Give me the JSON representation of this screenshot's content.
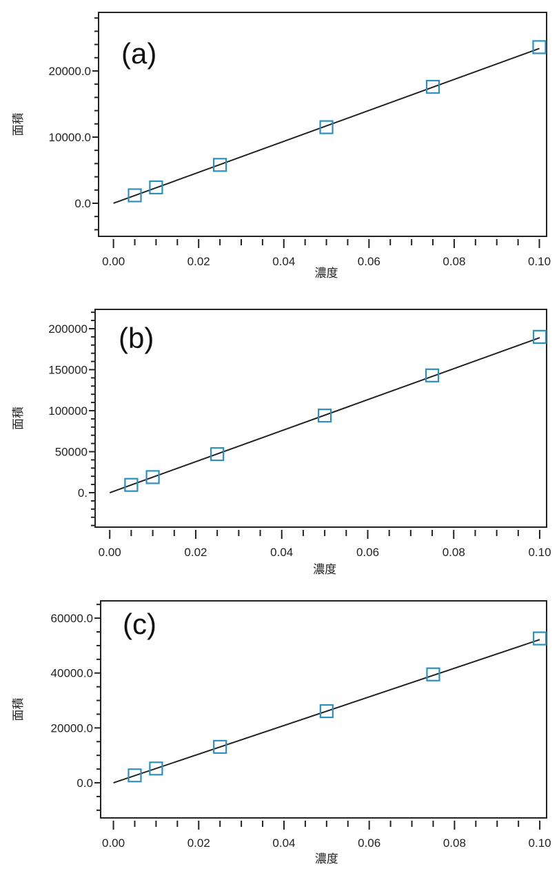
{
  "chart_data": [
    {
      "type": "scatter",
      "panel_label": "(a)",
      "xlabel": "濃度",
      "ylabel": "面積",
      "xlim": [
        -0.0035,
        0.1017
      ],
      "ylim": [
        -5000,
        28850
      ],
      "x_ticks": [
        0.0,
        0.02,
        0.04,
        0.06,
        0.08,
        0.1
      ],
      "x_tick_labels": [
        "0.00",
        "0.02",
        "0.04",
        "0.06",
        "0.08",
        "0.10"
      ],
      "x_minor_step": 0.005,
      "y_ticks": [
        0,
        10000,
        20000
      ],
      "y_tick_labels": [
        "0.0",
        "10000.0",
        "20000.0"
      ],
      "y_minor_step": 2000,
      "grid": false,
      "marker": "open-square",
      "marker_color": "#2b8fc0",
      "line_color": "#222222",
      "points": {
        "x": [
          0.005,
          0.01,
          0.025,
          0.05,
          0.075,
          0.1
        ],
        "y": [
          1200,
          2400,
          5800,
          11500,
          17600,
          23600
        ]
      },
      "fit_line": {
        "x": [
          0.0,
          0.1
        ],
        "y": [
          0,
          23400
        ]
      }
    },
    {
      "type": "scatter",
      "panel_label": "(b)",
      "xlabel": "濃度",
      "ylabel": "面積",
      "xlim": [
        -0.0034,
        0.1016
      ],
      "ylim": [
        -42000,
        223500
      ],
      "x_ticks": [
        0.0,
        0.02,
        0.04,
        0.06,
        0.08,
        0.1
      ],
      "x_tick_labels": [
        "0.00",
        "0.02",
        "0.04",
        "0.06",
        "0.08",
        "0.10"
      ],
      "x_minor_step": 0.005,
      "y_ticks": [
        0,
        50000,
        100000,
        150000,
        200000
      ],
      "y_tick_labels": [
        "0.",
        "50000",
        "100000",
        "150000",
        "200000"
      ],
      "y_minor_step": 10000,
      "grid": false,
      "marker": "open-square",
      "marker_color": "#2b8fc0",
      "line_color": "#222222",
      "points": {
        "x": [
          0.005,
          0.01,
          0.025,
          0.05,
          0.075,
          0.1
        ],
        "y": [
          9500,
          19000,
          47000,
          94000,
          143000,
          190000
        ]
      },
      "fit_line": {
        "x": [
          0.0,
          0.1
        ],
        "y": [
          0,
          189000
        ]
      }
    },
    {
      "type": "scatter",
      "panel_label": "(c)",
      "xlabel": "濃度",
      "ylabel": "面積",
      "xlim": [
        -0.003,
        0.1016
      ],
      "ylim": [
        -12800,
        66300
      ],
      "x_ticks": [
        0.0,
        0.02,
        0.04,
        0.06,
        0.08,
        0.1
      ],
      "x_tick_labels": [
        "0.00",
        "0.02",
        "0.04",
        "0.06",
        "0.08",
        "0.10"
      ],
      "x_minor_step": 0.005,
      "y_ticks": [
        0,
        20000,
        40000,
        60000
      ],
      "y_tick_labels": [
        "0.0",
        "20000.0",
        "40000.0",
        "60000.0"
      ],
      "y_minor_step": 5000,
      "grid": false,
      "marker": "open-square",
      "marker_color": "#2b8fc0",
      "line_color": "#222222",
      "points": {
        "x": [
          0.005,
          0.01,
          0.025,
          0.05,
          0.075,
          0.1
        ],
        "y": [
          2700,
          5200,
          13100,
          26100,
          39500,
          52600
        ]
      },
      "fit_line": {
        "x": [
          0.0,
          0.1
        ],
        "y": [
          0,
          52200
        ]
      }
    }
  ]
}
